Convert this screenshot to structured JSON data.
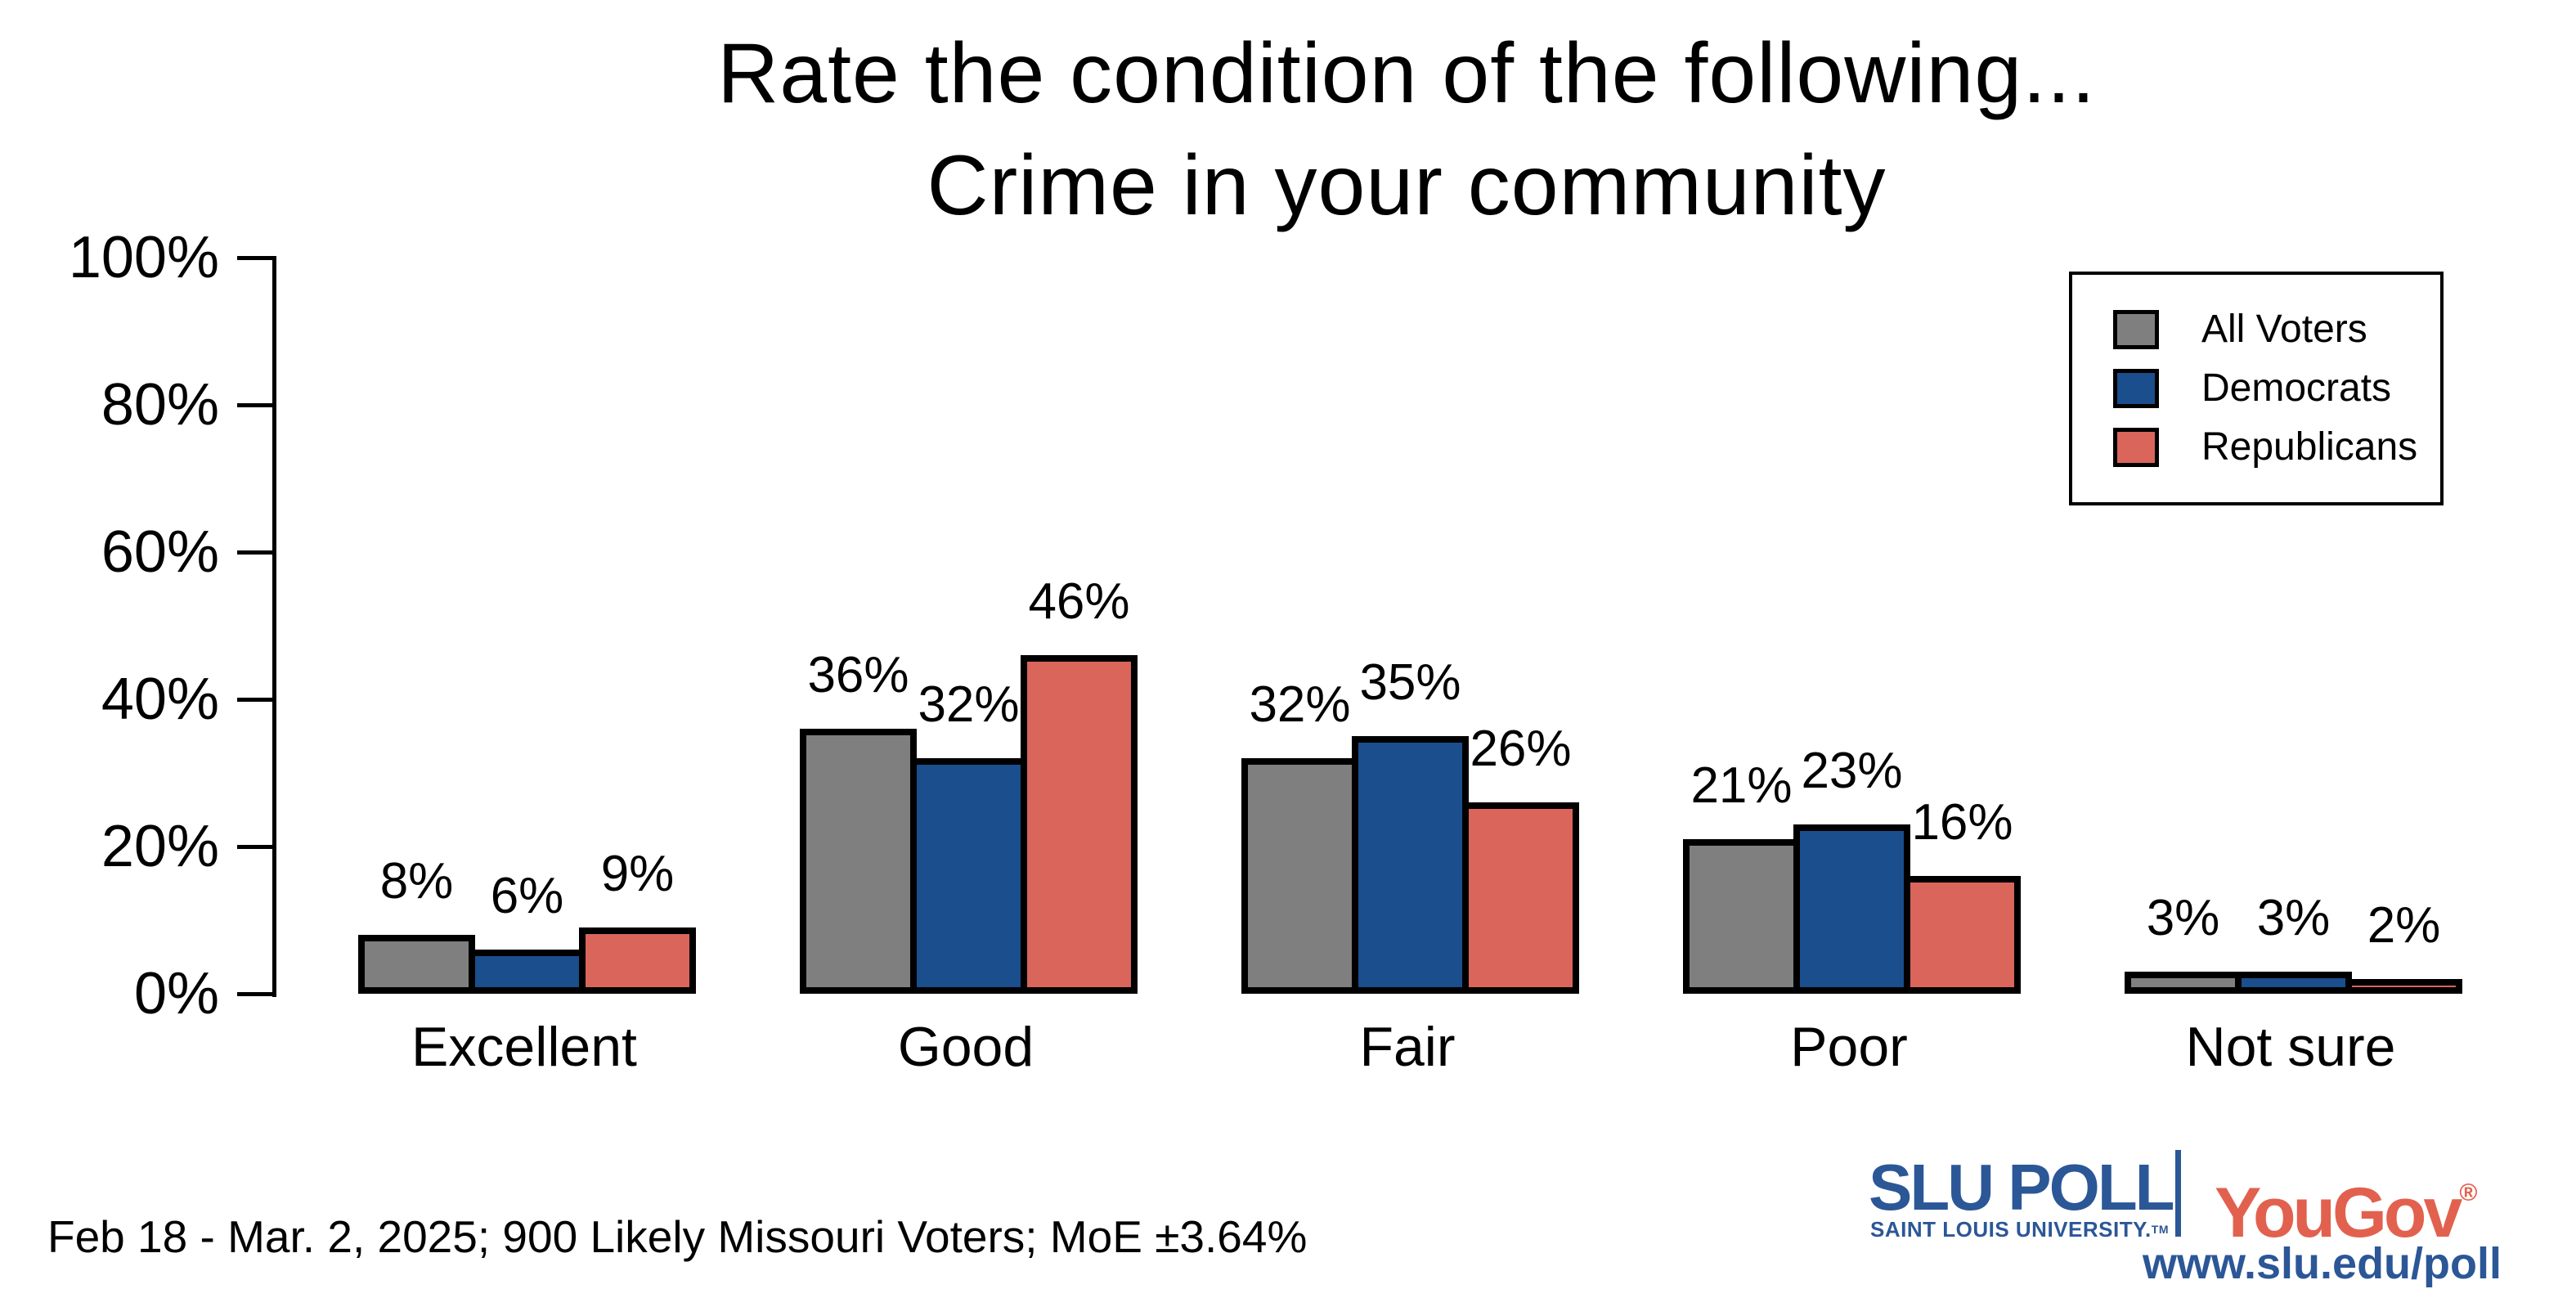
{
  "title": {
    "line1": "Rate the condition of the following...",
    "line2": "Crime in your community"
  },
  "legend": {
    "items": [
      {
        "label": "All Voters",
        "color": "#7F7F7F"
      },
      {
        "label": "Democrats",
        "color": "#1A4E8C"
      },
      {
        "label": "Republicans",
        "color": "#D9655B"
      }
    ]
  },
  "chart_data": {
    "type": "bar",
    "title": "Rate the condition of the following... Crime in your community",
    "categories": [
      "Excellent",
      "Good",
      "Fair",
      "Poor",
      "Not sure"
    ],
    "series": [
      {
        "name": "All Voters",
        "color": "#7F7F7F",
        "values": [
          8,
          36,
          32,
          21,
          3
        ]
      },
      {
        "name": "Democrats",
        "color": "#1A4E8C",
        "values": [
          6,
          32,
          35,
          23,
          3
        ]
      },
      {
        "name": "Republicans",
        "color": "#D9655B",
        "values": [
          9,
          46,
          26,
          16,
          2
        ]
      }
    ],
    "xlabel": "",
    "ylabel": "",
    "ylim": [
      0,
      100
    ],
    "yticks": [
      "0%",
      "20%",
      "40%",
      "60%",
      "80%",
      "100%"
    ],
    "grid": false,
    "legend_position": "upper right",
    "value_label_suffix": "%"
  },
  "footer": {
    "note": "Feb 18 - Mar. 2, 2025; 900 Likely Missouri Voters; MoE ±3.64%"
  },
  "branding": {
    "slu_poll": "SLU POLL",
    "slu_subtitle": "SAINT LOUIS UNIVERSITY.",
    "slu_tm": "TM",
    "yougov": "YouGov",
    "yougov_reg": "®",
    "url": "www.slu.edu/poll",
    "slu_blue": "#2B5797",
    "yougov_red": "#E2614E"
  }
}
